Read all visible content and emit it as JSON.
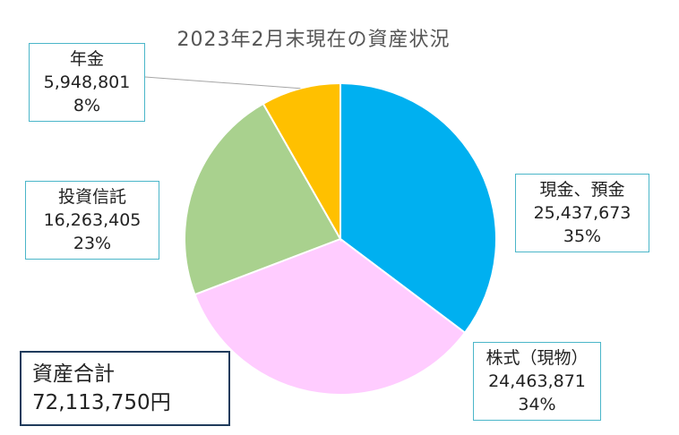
{
  "chart_data": {
    "type": "pie",
    "title": "2023年2月末現在の資産状況",
    "slices": [
      {
        "label": "現金、預金",
        "value": 25437673,
        "value_text": "25,437,673",
        "percent_text": "35%",
        "color": "#00b0f0"
      },
      {
        "label": "株式（現物）",
        "value": 24463871,
        "value_text": "24,463,871",
        "percent_text": "34%",
        "color": "#ffccff"
      },
      {
        "label": "投資信託",
        "value": 16263405,
        "value_text": "16,263,405",
        "percent_text": "23%",
        "color": "#a9d18e"
      },
      {
        "label": "年金",
        "value": 5948801,
        "value_text": "5,948,801",
        "percent_text": "8%",
        "color": "#ffc000"
      }
    ],
    "total_label": "資産合計",
    "total_value": "72,113,750円",
    "label_border_color": "#4bb6c9",
    "total_border_color": "#1f3b5c"
  }
}
